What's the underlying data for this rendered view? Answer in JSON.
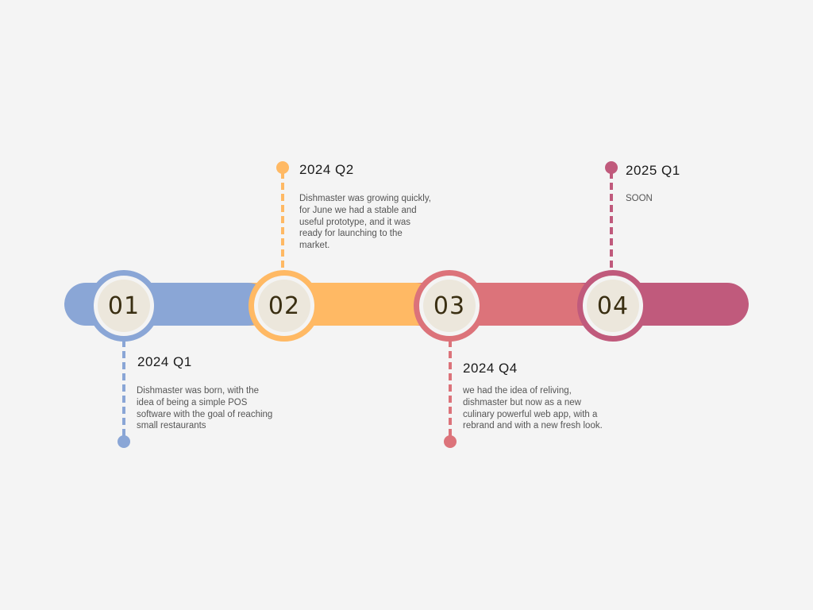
{
  "colors": {
    "background": "#f4f4f4",
    "blue": "#8aa6d6",
    "orange": "#ffb964",
    "salmon": "#dc737a",
    "rose": "#c05a7c",
    "node_fill": "#ece7dc",
    "number_text": "#3a2f12"
  },
  "milestones": [
    {
      "number": "01",
      "period": "2024 Q1",
      "description": "Dishmaster was born, with the idea of being a simple POS software with the goal of reaching small restaurants",
      "color": "#8aa6d6",
      "label_position": "below"
    },
    {
      "number": "02",
      "period": "2024 Q2",
      "description": "Dishmaster was growing quickly, for June we had a stable and useful prototype, and it was ready for launching to the market.",
      "color": "#ffb964",
      "label_position": "above"
    },
    {
      "number": "03",
      "period": "2024 Q4",
      "description": "we had the idea of reliving, dishmaster but now as a new culinary powerful web app, with a rebrand and with a new fresh look.",
      "color": "#dc737a",
      "label_position": "below"
    },
    {
      "number": "04",
      "period": "2025 Q1",
      "description": "SOON",
      "color": "#c05a7c",
      "label_position": "above"
    }
  ]
}
